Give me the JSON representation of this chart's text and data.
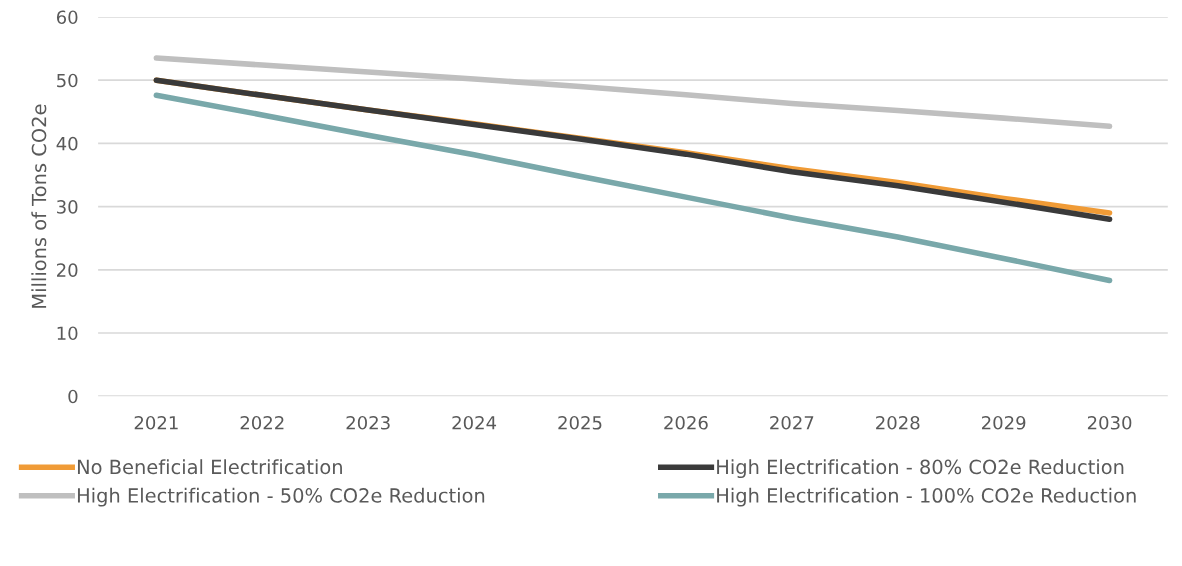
{
  "chart_data": {
    "type": "line",
    "ylabel": "Millions of Tons CO2e",
    "categories": [
      "2021",
      "2022",
      "2023",
      "2024",
      "2025",
      "2026",
      "2027",
      "2028",
      "2029",
      "2030"
    ],
    "series": [
      {
        "name": "No Beneficial Electrification",
        "color": "#f09b36",
        "values": [
          50,
          47.6,
          45.3,
          43.1,
          40.8,
          38.5,
          36.0,
          33.8,
          31.3,
          29.0
        ]
      },
      {
        "name": "High Electrification - 50% CO2e Reduction",
        "color": "#bfbfbf",
        "values": [
          53.5,
          52.4,
          51.3,
          50.2,
          49.0,
          47.7,
          46.3,
          45.2,
          44.0,
          42.7
        ]
      },
      {
        "name": "High Electrification - 80% CO2e Reduction",
        "color": "#3a3a3a",
        "values": [
          50,
          47.6,
          45.3,
          43.0,
          40.7,
          38.3,
          35.5,
          33.3,
          30.7,
          28.0
        ]
      },
      {
        "name": "High Electrification - 100% CO2e Reduction",
        "color": "#79a8aa",
        "values": [
          47.6,
          44.5,
          41.3,
          38.2,
          34.8,
          31.5,
          28.2,
          25.2,
          21.8,
          18.3
        ]
      }
    ],
    "ylim": [
      0,
      60
    ],
    "yticks": [
      0,
      10,
      20,
      30,
      40,
      50,
      60
    ],
    "grid": "y",
    "legend": "bottom",
    "marker": "none",
    "line_style": "solid"
  }
}
